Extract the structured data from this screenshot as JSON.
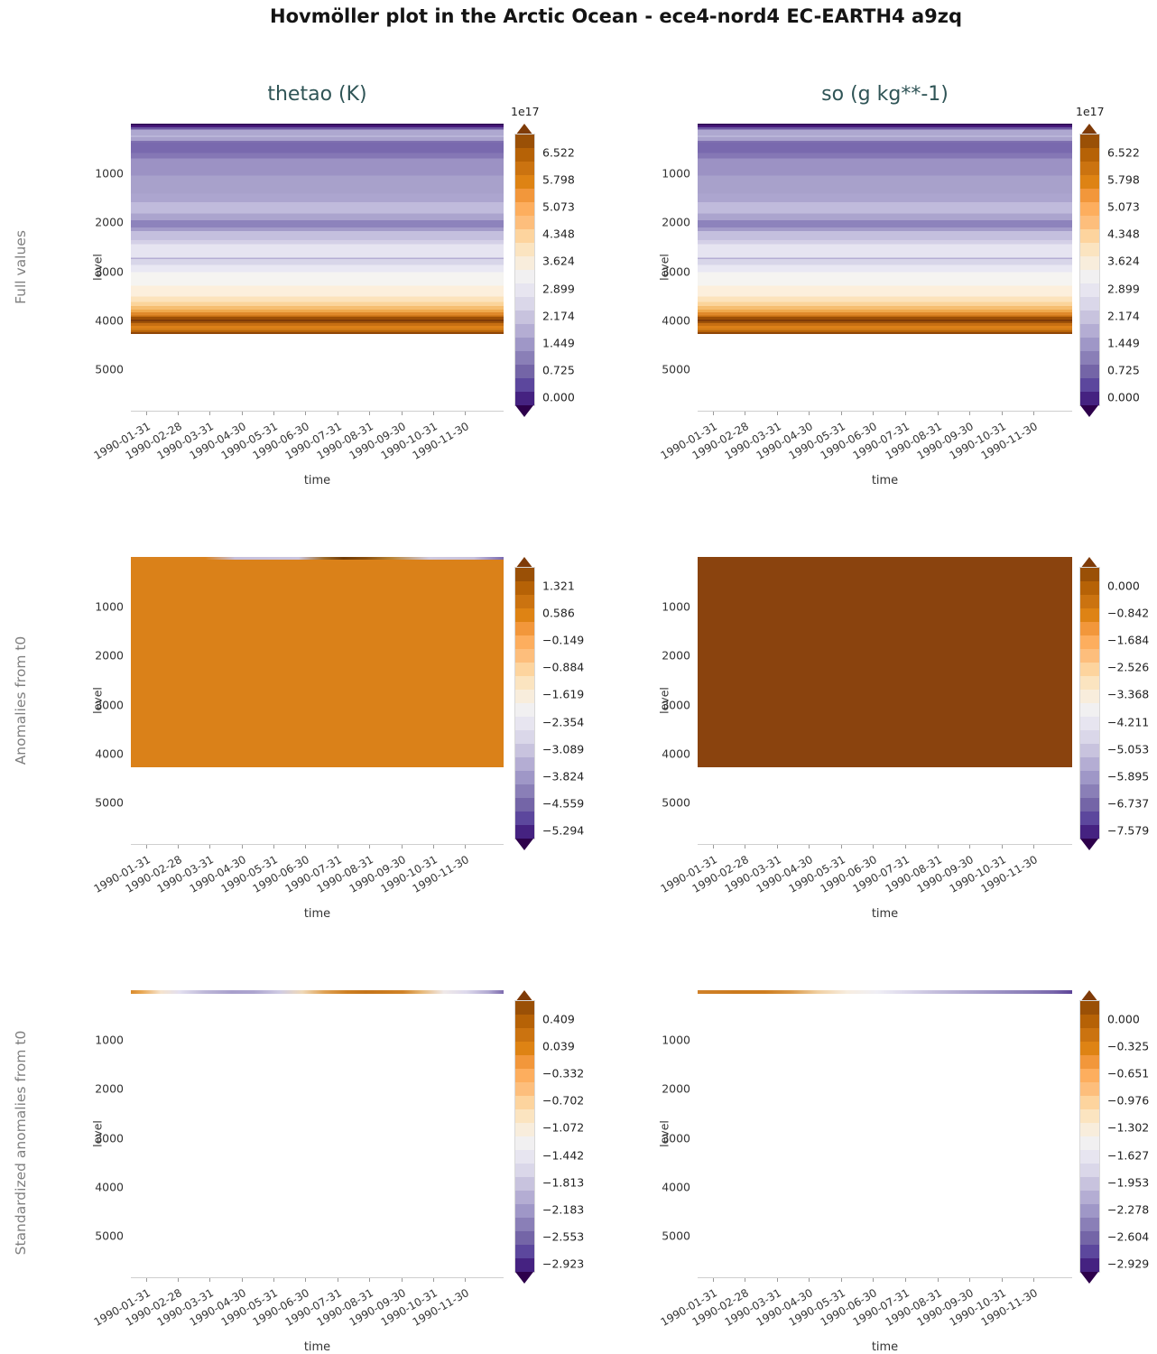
{
  "title": "Hovmöller plot in the Arctic Ocean - ece4-nord4 EC-EARTH4 a9zq",
  "columns": [
    {
      "title": "thetao (K)"
    },
    {
      "title": "so (g kg**-1)"
    }
  ],
  "rows": [
    {
      "label": "Full values"
    },
    {
      "label": "Anomalies from t0"
    },
    {
      "label": "Standardized anomalies from t0"
    }
  ],
  "axes": {
    "xlabel": "time",
    "ylabel": "level",
    "x_ticks": [
      "1990-01-31",
      "1990-02-28",
      "1990-03-31",
      "1990-04-30",
      "1990-05-31",
      "1990-06-30",
      "1990-07-31",
      "1990-08-31",
      "1990-09-30",
      "1990-10-31",
      "1990-11-30"
    ],
    "y_ticks": [
      "1000",
      "2000",
      "3000",
      "4000",
      "5000"
    ]
  },
  "colorbars": {
    "full": {
      "offset": "1e17",
      "ticks": [
        "6.522",
        "5.798",
        "5.073",
        "4.348",
        "3.624",
        "2.899",
        "2.174",
        "1.449",
        "0.725",
        "0.000"
      ]
    },
    "anom_thetao": {
      "ticks": [
        "1.321",
        "0.586",
        "−0.149",
        "−0.884",
        "−1.619",
        "−2.354",
        "−3.089",
        "−3.824",
        "−4.559",
        "−5.294"
      ]
    },
    "anom_so": {
      "ticks": [
        "0.000",
        "−0.842",
        "−1.684",
        "−2.526",
        "−3.368",
        "−4.211",
        "−5.053",
        "−5.895",
        "−6.737",
        "−7.579"
      ]
    },
    "std_thetao": {
      "ticks": [
        "0.409",
        "0.039",
        "−0.332",
        "−0.702",
        "−1.072",
        "−1.442",
        "−1.813",
        "−2.183",
        "−2.553",
        "−2.923"
      ]
    },
    "std_so": {
      "ticks": [
        "0.000",
        "−0.325",
        "−0.651",
        "−0.976",
        "−1.302",
        "−1.627",
        "−1.953",
        "−2.278",
        "−2.604",
        "−2.929"
      ]
    }
  },
  "colors": {
    "subplot_title": "#2F5456",
    "row_label": "#7f7f7f",
    "colormap_low_purple": "#2D004B",
    "colormap_high_orange": "#7F3B08",
    "anom_thetao_body": "#DA8119",
    "anom_so_body": "#8A430E"
  },
  "chart_data": [
    {
      "type": "heatmap",
      "panel": "full-values-thetao",
      "title": "thetao (K)",
      "row": "Full values",
      "xlabel": "time",
      "ylabel": "level",
      "x": [
        "1990-01-31",
        "1990-02-28",
        "1990-03-31",
        "1990-04-30",
        "1990-05-31",
        "1990-06-30",
        "1990-07-31",
        "1990-08-31",
        "1990-09-30",
        "1990-10-31",
        "1990-11-30"
      ],
      "y_axis_range": [
        0,
        5800
      ],
      "data_max_level": 4300,
      "colormap": "PuOr reversed (purple = low, orange = high)",
      "colorbar_offset": "1e17",
      "colorbar_ticks": [
        6.522,
        5.798,
        5.073,
        4.348,
        3.624,
        2.899,
        2.174,
        1.449,
        0.725,
        0.0
      ],
      "time_variation": "none visible - horizontal bands constant across all 11 months",
      "depth_profile_x1e17": [
        {
          "level": 30,
          "value": 0.2
        },
        {
          "level": 250,
          "value": 2.4
        },
        {
          "level": 550,
          "value": 1.5
        },
        {
          "level": 1200,
          "value": 2.3
        },
        {
          "level": 1800,
          "value": 2.7
        },
        {
          "level": 2050,
          "value": 1.9
        },
        {
          "level": 2450,
          "value": 2.9
        },
        {
          "level": 2900,
          "value": 3.4
        },
        {
          "level": 3250,
          "value": 3.9
        },
        {
          "level": 3500,
          "value": 4.5
        },
        {
          "level": 3750,
          "value": 5.3
        },
        {
          "level": 3900,
          "value": 6.9
        },
        {
          "level": 4050,
          "value": 5.8
        },
        {
          "level": 4250,
          "value": 6.5
        }
      ]
    },
    {
      "type": "heatmap",
      "panel": "full-values-so",
      "title": "so (g kg**-1)",
      "row": "Full values",
      "xlabel": "time",
      "ylabel": "level",
      "x": [
        "1990-01-31",
        "1990-02-28",
        "1990-03-31",
        "1990-04-30",
        "1990-05-31",
        "1990-06-30",
        "1990-07-31",
        "1990-08-31",
        "1990-09-30",
        "1990-10-31",
        "1990-11-30"
      ],
      "y_axis_range": [
        0,
        5800
      ],
      "data_max_level": 4300,
      "colormap": "PuOr reversed (purple = low, orange = high)",
      "colorbar_offset": "1e17",
      "colorbar_ticks": [
        6.522,
        5.798,
        5.073,
        4.348,
        3.624,
        2.899,
        2.174,
        1.449,
        0.725,
        0.0
      ],
      "time_variation": "none visible - banding identical to thetao full-values panel",
      "depth_profile_x1e17": [
        {
          "level": 30,
          "value": 0.2
        },
        {
          "level": 250,
          "value": 2.4
        },
        {
          "level": 550,
          "value": 1.5
        },
        {
          "level": 1200,
          "value": 2.3
        },
        {
          "level": 1800,
          "value": 2.7
        },
        {
          "level": 2050,
          "value": 1.9
        },
        {
          "level": 2450,
          "value": 2.9
        },
        {
          "level": 2900,
          "value": 3.4
        },
        {
          "level": 3250,
          "value": 3.9
        },
        {
          "level": 3500,
          "value": 4.5
        },
        {
          "level": 3750,
          "value": 5.3
        },
        {
          "level": 3900,
          "value": 6.9
        },
        {
          "level": 4050,
          "value": 5.8
        },
        {
          "level": 4250,
          "value": 6.5
        }
      ]
    },
    {
      "type": "heatmap",
      "panel": "anomalies-thetao",
      "title": "thetao (K)",
      "row": "Anomalies from t0",
      "xlabel": "time",
      "ylabel": "level",
      "x": [
        "1990-01-31",
        "1990-02-28",
        "1990-03-31",
        "1990-04-30",
        "1990-05-31",
        "1990-06-30",
        "1990-07-31",
        "1990-08-31",
        "1990-09-30",
        "1990-10-31",
        "1990-11-30"
      ],
      "y_axis_range": [
        0,
        5800
      ],
      "data_max_level": 4300,
      "colorbar_ticks": [
        1.321,
        0.586,
        -0.149,
        -0.884,
        -1.619,
        -2.354,
        -3.089,
        -3.824,
        -4.559,
        -5.294
      ],
      "body_value": 0.0,
      "body_note": "uniform orange block = anomaly ~0 over whole depth and time",
      "surface_values_by_month": [
        0.0,
        -2.0,
        -2.2,
        -2.0,
        -1.0,
        0.5,
        1.3,
        0.5,
        -1.5,
        -2.0,
        -2.8
      ]
    },
    {
      "type": "heatmap",
      "panel": "anomalies-so",
      "title": "so (g kg**-1)",
      "row": "Anomalies from t0",
      "xlabel": "time",
      "ylabel": "level",
      "x": [
        "1990-01-31",
        "1990-02-28",
        "1990-03-31",
        "1990-04-30",
        "1990-05-31",
        "1990-06-30",
        "1990-07-31",
        "1990-08-31",
        "1990-09-30",
        "1990-10-31",
        "1990-11-30"
      ],
      "y_axis_range": [
        0,
        5800
      ],
      "data_max_level": 4300,
      "colorbar_ticks": [
        0.0,
        -0.842,
        -1.684,
        -2.526,
        -3.368,
        -4.211,
        -5.053,
        -5.895,
        -6.737,
        -7.579
      ],
      "body_value": -0.1,
      "body_note": "uniform dark-brown block = anomaly ~0 (top of colorbar) over whole depth and time"
    },
    {
      "type": "heatmap",
      "panel": "standardized-anomalies-thetao",
      "title": "thetao (K)",
      "row": "Standardized anomalies from t0",
      "xlabel": "time",
      "ylabel": "level",
      "x": [
        "1990-01-31",
        "1990-02-28",
        "1990-03-31",
        "1990-04-30",
        "1990-05-31",
        "1990-06-30",
        "1990-07-31",
        "1990-08-31",
        "1990-09-30",
        "1990-10-31",
        "1990-11-30"
      ],
      "y_axis_range": [
        0,
        5800
      ],
      "colorbar_ticks": [
        0.409,
        0.039,
        -0.332,
        -0.702,
        -1.072,
        -1.442,
        -1.813,
        -2.183,
        -2.553,
        -2.923
      ],
      "body_note": "interior appears white (near colormap centre); only a thin surface band shows signal",
      "surface_values_by_month": [
        0.0,
        -1.2,
        -1.9,
        -1.8,
        -1.0,
        -0.3,
        0.1,
        -0.3,
        -1.2,
        -1.6,
        -2.3
      ]
    },
    {
      "type": "heatmap",
      "panel": "standardized-anomalies-so",
      "title": "so (g kg**-1)",
      "row": "Standardized anomalies from t0",
      "xlabel": "time",
      "ylabel": "level",
      "x": [
        "1990-01-31",
        "1990-02-28",
        "1990-03-31",
        "1990-04-30",
        "1990-05-31",
        "1990-06-30",
        "1990-07-31",
        "1990-08-31",
        "1990-09-30",
        "1990-10-31",
        "1990-11-30"
      ],
      "y_axis_range": [
        0,
        5800
      ],
      "colorbar_ticks": [
        0.0,
        -0.325,
        -0.651,
        -0.976,
        -1.302,
        -1.627,
        -1.953,
        -2.278,
        -2.604,
        -2.929
      ],
      "body_note": "interior appears white; thin surface band goes monotonically orange (Jan) to dark purple (Nov)",
      "surface_values_by_month": [
        -0.2,
        -0.3,
        -0.5,
        -0.9,
        -1.3,
        -1.6,
        -1.9,
        -2.1,
        -2.3,
        -2.6,
        -2.9
      ]
    }
  ]
}
